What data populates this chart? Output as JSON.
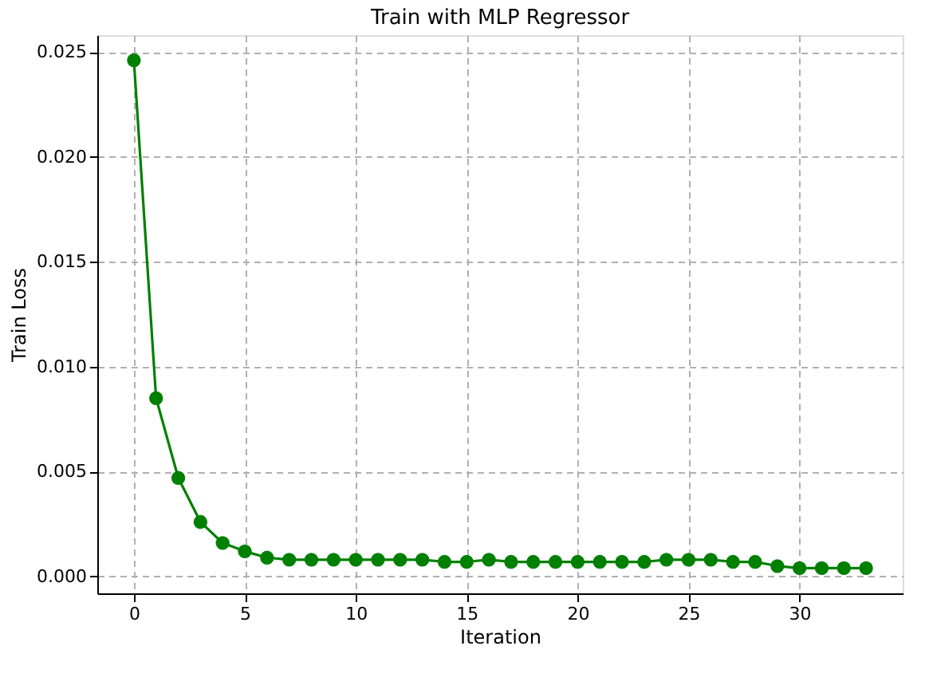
{
  "chart_data": {
    "type": "line",
    "title": "Train with MLP Regressor",
    "xlabel": "Iteration",
    "ylabel": "Train Loss",
    "x": [
      0,
      1,
      2,
      3,
      4,
      5,
      6,
      7,
      8,
      9,
      10,
      11,
      12,
      13,
      14,
      15,
      16,
      17,
      18,
      19,
      20,
      21,
      22,
      23,
      24,
      25,
      26,
      27,
      28,
      29,
      30,
      31,
      32,
      33
    ],
    "series": [
      {
        "color": "#008000",
        "values": [
          0.0246,
          0.0085,
          0.0047,
          0.0026,
          0.0016,
          0.0012,
          0.0009,
          0.0008,
          0.0008,
          0.0008,
          0.0008,
          0.0008,
          0.0008,
          0.0008,
          0.0007,
          0.0007,
          0.0008,
          0.0007,
          0.0007,
          0.0007,
          0.0007,
          0.0007,
          0.0007,
          0.0007,
          0.0008,
          0.0008,
          0.0008,
          0.0007,
          0.0007,
          0.0005,
          0.0004,
          0.0004,
          0.0004,
          0.0004
        ]
      }
    ],
    "xlim": [
      -1.65,
      34.65
    ],
    "ylim": [
      -0.0008,
      0.0258
    ],
    "xticks": [
      0,
      5,
      10,
      15,
      20,
      25,
      30
    ],
    "yticks": [
      {
        "value": 0,
        "label": "0.000"
      },
      {
        "value": 0.005,
        "label": "0.005"
      },
      {
        "value": 0.01,
        "label": "0.010"
      },
      {
        "value": 0.015,
        "label": "0.015"
      },
      {
        "value": 0.02,
        "label": "0.020"
      },
      {
        "value": 0.025,
        "label": "0.025"
      }
    ],
    "grid": true,
    "marker": "circle",
    "line_style": "solid"
  }
}
